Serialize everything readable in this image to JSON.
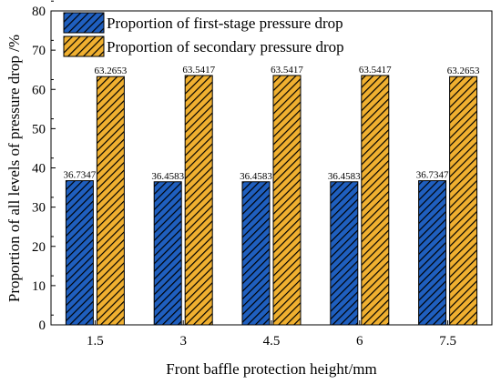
{
  "chart_data": {
    "type": "bar",
    "title": "",
    "xlabel": "Front baffle protection height/mm",
    "ylabel": "Proportion of all levels of pressure drop /%",
    "categories": [
      "1.5",
      "3",
      "4.5",
      "6",
      "7.5"
    ],
    "ylim": [
      0,
      80
    ],
    "yticks": [
      "0",
      "10",
      "20",
      "30",
      "40",
      "50",
      "60",
      "70",
      "80"
    ],
    "grid": false,
    "legend_position": "top-left",
    "series": [
      {
        "name": "Proportion of first-stage pressure drop",
        "values": [
          36.7347,
          36.4583,
          36.4583,
          36.4583,
          36.7347
        ],
        "labels": [
          "36.7347",
          "36.4583",
          "36.4583",
          "36.4583",
          "36.7347"
        ],
        "color": "#1f5fbf",
        "pattern": "hatch"
      },
      {
        "name": "Proportion of secondary pressure drop",
        "values": [
          63.2653,
          63.5417,
          63.5417,
          63.5417,
          63.2653
        ],
        "labels": [
          "63.2653",
          "63.5417",
          "63.5417",
          "63.5417",
          "63.2653"
        ],
        "color": "#f0b030",
        "pattern": "hatch"
      }
    ]
  }
}
